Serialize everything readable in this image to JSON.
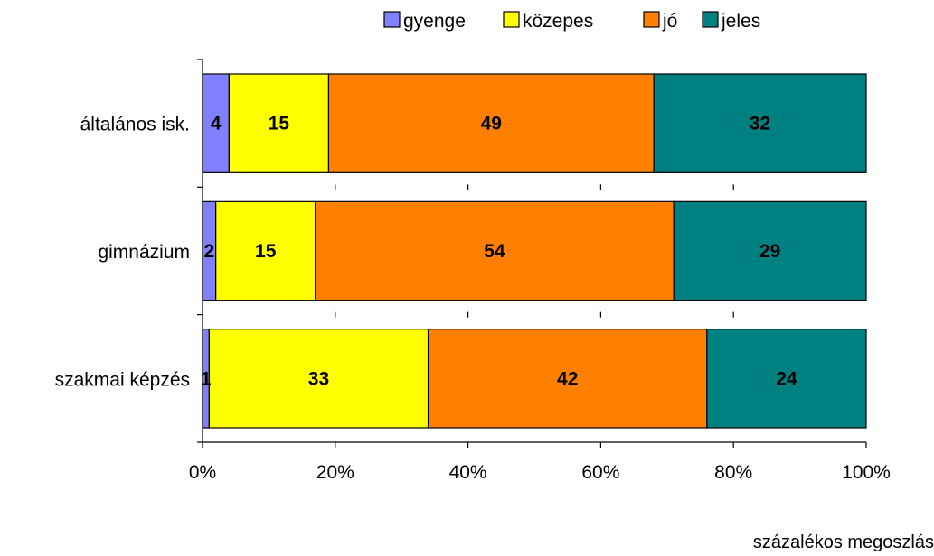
{
  "chart_data": {
    "type": "bar",
    "orientation": "horizontal",
    "stacked": "percent",
    "categories": [
      "általános isk.",
      "gimnázium",
      "szakmai képzés"
    ],
    "series": [
      {
        "name": "gyenge",
        "color": "#8080ff",
        "values": [
          4,
          2,
          1
        ]
      },
      {
        "name": "közepes",
        "color": "#ffff00",
        "values": [
          15,
          15,
          33
        ]
      },
      {
        "name": "jó",
        "color": "#ff8000",
        "values": [
          49,
          54,
          42
        ]
      },
      {
        "name": "jeles",
        "color": "#008080",
        "values": [
          32,
          29,
          24
        ]
      }
    ],
    "x_ticks": [
      "0%",
      "20%",
      "40%",
      "60%",
      "80%",
      "100%"
    ],
    "xlim": [
      0,
      100
    ],
    "xlabel": "százalékos megoszlás",
    "legend_position": "top",
    "grid": false
  }
}
